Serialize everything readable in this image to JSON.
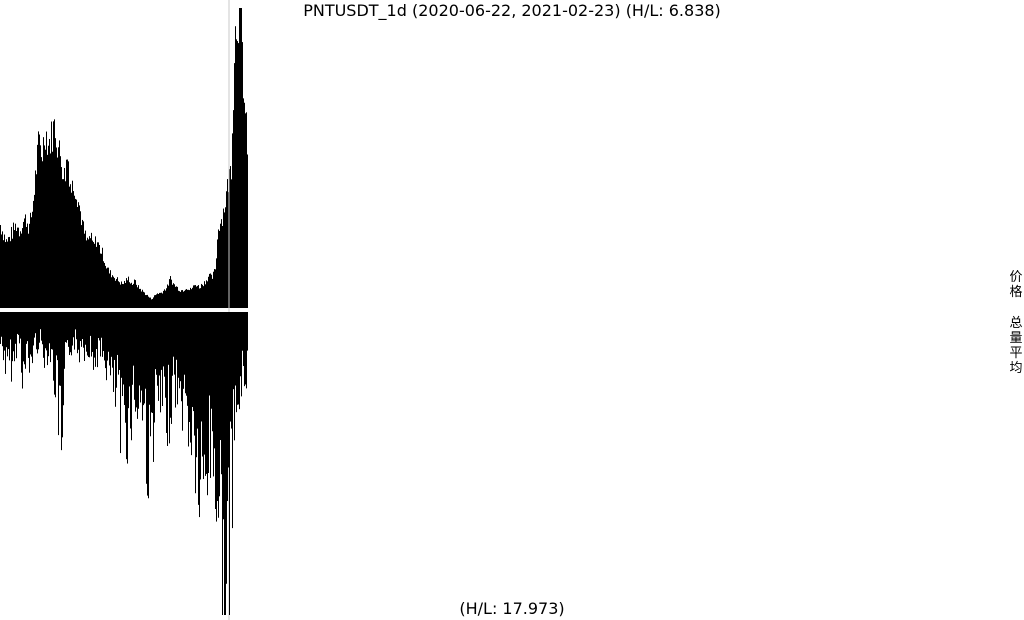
{
  "chart_data": {
    "type": "area",
    "title": "PNTUSDT_1d (2020-06-22, 2021-02-23) (H/L: 6.838)",
    "bottom_label": "(H/L: 17.973)",
    "side_labels": [
      "价格",
      "总量平均"
    ],
    "x_range": [
      "2020-06-22",
      "2021-02-23"
    ],
    "upper_series": {
      "name": "价格",
      "hl": 6.838,
      "profile": [
        0.28,
        0.25,
        0.22,
        0.24,
        0.26,
        0.28,
        0.26,
        0.29,
        0.3,
        0.27,
        0.33,
        0.45,
        0.56,
        0.52,
        0.6,
        0.55,
        0.58,
        0.62,
        0.54,
        0.5,
        0.44,
        0.52,
        0.4,
        0.42,
        0.38,
        0.32,
        0.26,
        0.22,
        0.24,
        0.21,
        0.23,
        0.2,
        0.18,
        0.14,
        0.12,
        0.11,
        0.1,
        0.09,
        0.08,
        0.09,
        0.1,
        0.08,
        0.09,
        0.07,
        0.06,
        0.05,
        0.04,
        0.03,
        0.04,
        0.05,
        0.05,
        0.06,
        0.07,
        0.1,
        0.08,
        0.07,
        0.06,
        0.06,
        0.07,
        0.06,
        0.07,
        0.08,
        0.07,
        0.08,
        0.09,
        0.11,
        0.1,
        0.13,
        0.28,
        0.3,
        0.35,
        0.42,
        0.48,
        0.9,
        1.0,
        0.98,
        0.7,
        0.55
      ],
      "color": "#000000"
    },
    "lower_series": {
      "name": "总量平均",
      "hl": 17.973,
      "profile": [
        0.1,
        0.12,
        0.2,
        0.15,
        0.18,
        0.1,
        0.08,
        0.22,
        0.14,
        0.18,
        0.12,
        0.1,
        0.09,
        0.12,
        0.14,
        0.1,
        0.18,
        0.22,
        0.33,
        0.5,
        0.18,
        0.12,
        0.1,
        0.09,
        0.14,
        0.08,
        0.12,
        0.1,
        0.14,
        0.16,
        0.12,
        0.15,
        0.14,
        0.18,
        0.2,
        0.28,
        0.22,
        0.4,
        0.3,
        0.36,
        0.32,
        0.25,
        0.3,
        0.28,
        0.3,
        0.42,
        0.5,
        0.35,
        0.3,
        0.28,
        0.32,
        0.35,
        0.3,
        0.25,
        0.22,
        0.3,
        0.28,
        0.32,
        0.35,
        0.4,
        0.45,
        0.55,
        0.6,
        0.55,
        0.45,
        0.42,
        0.5,
        0.6,
        0.7,
        1.0,
        0.98,
        0.55,
        0.4,
        0.3,
        0.25,
        0.2,
        0.18
      ],
      "color": "#000000"
    }
  }
}
